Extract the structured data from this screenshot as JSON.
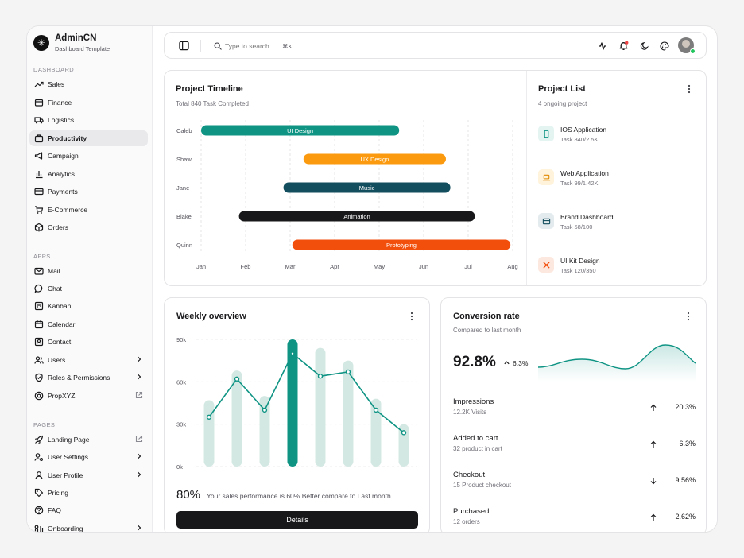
{
  "brand": {
    "name": "AdminCN",
    "subtitle": "Dashboard Template"
  },
  "sidebar": {
    "sections": [
      {
        "label": "DASHBOARD"
      },
      {
        "label": "APPS"
      },
      {
        "label": "PAGES"
      }
    ],
    "items": [
      {
        "label": "Sales",
        "icon": "trending-up-icon"
      },
      {
        "label": "Finance",
        "icon": "wallet-icon"
      },
      {
        "label": "Logistics",
        "icon": "truck-icon"
      },
      {
        "label": "Productivity",
        "icon": "briefcase-icon",
        "active": true
      },
      {
        "label": "Campaign",
        "icon": "megaphone-icon"
      },
      {
        "label": "Analytics",
        "icon": "bar-chart-icon"
      },
      {
        "label": "Payments",
        "icon": "credit-card-icon"
      },
      {
        "label": "E-Commerce",
        "icon": "cart-icon"
      },
      {
        "label": "Orders",
        "icon": "package-icon"
      },
      {
        "label": "Mail",
        "icon": "mail-icon"
      },
      {
        "label": "Chat",
        "icon": "chat-icon"
      },
      {
        "label": "Kanban",
        "icon": "kanban-icon"
      },
      {
        "label": "Calendar",
        "icon": "calendar-icon"
      },
      {
        "label": "Contact",
        "icon": "contact-icon"
      },
      {
        "label": "Users",
        "icon": "users-icon",
        "tail": "chevron-right-icon"
      },
      {
        "label": "Roles & Permissions",
        "icon": "shield-icon",
        "tail": "chevron-right-icon"
      },
      {
        "label": "PropXYZ",
        "icon": "at-icon",
        "tail": "external-link-icon"
      },
      {
        "label": "Landing Page",
        "icon": "rocket-icon",
        "tail": "external-link-icon"
      },
      {
        "label": "User Settings",
        "icon": "user-cog-icon",
        "tail": "chevron-right-icon"
      },
      {
        "label": "User Profile",
        "icon": "user-icon",
        "tail": "chevron-right-icon"
      },
      {
        "label": "Pricing",
        "icon": "tag-icon"
      },
      {
        "label": "FAQ",
        "icon": "help-circle-icon"
      },
      {
        "label": "Onboarding",
        "icon": "steps-icon",
        "tail": "chevron-right-icon"
      }
    ]
  },
  "topbar": {
    "search_placeholder": "Type to search...",
    "shortcut": "⌘K"
  },
  "timeline": {
    "title": "Project Timeline",
    "subtitle": "Total 840 Task Completed",
    "months": [
      "Jan",
      "Feb",
      "Mar",
      "Apr",
      "May",
      "Jun",
      "Jul",
      "Aug"
    ],
    "rows": [
      {
        "person": "Caleb",
        "task": "UI Design",
        "start": 0.0,
        "end": 4.45,
        "color": "#0f9484"
      },
      {
        "person": "Shaw",
        "task": "UX Design",
        "start": 2.3,
        "end": 5.5,
        "color": "#fb9a0e"
      },
      {
        "person": "Jane",
        "task": "Music",
        "start": 1.85,
        "end": 5.6,
        "color": "#134e5e"
      },
      {
        "person": "Blake",
        "task": "Animation",
        "start": 0.85,
        "end": 6.15,
        "color": "#18181b"
      },
      {
        "person": "Quinn",
        "task": "Prototyping",
        "start": 2.05,
        "end": 6.95,
        "color": "#f24e0c"
      }
    ]
  },
  "projects": {
    "title": "Project List",
    "subtitle": "4 ongoing project",
    "items": [
      {
        "name": "IOS Application",
        "task": "Task 840/2.5K",
        "icon": "phone-icon",
        "bg": "#e3f4f1",
        "fg": "#0f9484"
      },
      {
        "name": "Web Application",
        "task": "Task 99/1.42K",
        "icon": "laptop-icon",
        "bg": "#fff3dc",
        "fg": "#e08a00"
      },
      {
        "name": "Brand Dashboard",
        "task": "Task 58/100",
        "icon": "window-icon",
        "bg": "#e4ebee",
        "fg": "#134e5e"
      },
      {
        "name": "UI Kit Design",
        "task": "Task 120/350",
        "icon": "pen-tool-icon",
        "bg": "#fde8df",
        "fg": "#f24e0c"
      }
    ]
  },
  "weekly": {
    "title": "Weekly overview",
    "percent": "80%",
    "caption": "Your sales performance is 60% Better compare to Last month",
    "button": "Details",
    "chart_data": {
      "type": "bar",
      "y_ticks": [
        "90k",
        "60k",
        "30k",
        "0k"
      ],
      "ylim": [
        0,
        90000
      ],
      "bars": [
        47000,
        68000,
        50000,
        90000,
        84000,
        75000,
        48000,
        30000
      ],
      "line": [
        35000,
        62000,
        40000,
        80000,
        64000,
        67000,
        40000,
        24000
      ],
      "highlight_index": 3,
      "colors": {
        "bar": "#d4e8e3",
        "highlight": "#0f9484",
        "line": "#0f9484"
      }
    }
  },
  "conversion": {
    "title": "Conversion rate",
    "subtitle": "Compared to last month",
    "value": "92.8%",
    "change": "6.3%",
    "metrics": [
      {
        "name": "Impressions",
        "sub": "12.2K Visits",
        "value": "20.3%",
        "dir": "up"
      },
      {
        "name": "Added to cart",
        "sub": "32 product in cart",
        "value": "6.3%",
        "dir": "up"
      },
      {
        "name": "Checkout",
        "sub": "15 Product checkout",
        "value": "9.56%",
        "dir": "down"
      },
      {
        "name": "Purchased",
        "sub": "12 orders",
        "value": "2.62%",
        "dir": "up"
      }
    ]
  }
}
